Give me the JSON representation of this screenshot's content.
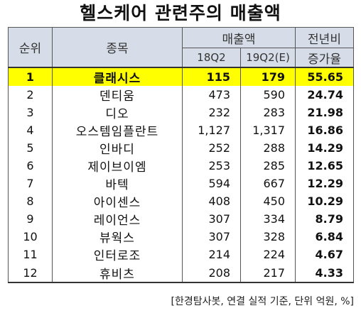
{
  "title": "헬스케어 관련주의 매출액",
  "header": {
    "rank": "순위",
    "name": "종목",
    "sales": "매출액",
    "col_18": "18Q2",
    "col_19": "19Q2(E)",
    "yoy_line1": "전년비",
    "yoy_line2": "증가율"
  },
  "rows": [
    {
      "rank": "1",
      "name": "클래시스",
      "q18": "115",
      "q19": "179",
      "yoy": "55.65"
    },
    {
      "rank": "2",
      "name": "덴티움",
      "q18": "473",
      "q19": "590",
      "yoy": "24.74"
    },
    {
      "rank": "3",
      "name": "디오",
      "q18": "232",
      "q19": "283",
      "yoy": "21.98"
    },
    {
      "rank": "4",
      "name": "오스템임플란트",
      "q18": "1,127",
      "q19": "1,317",
      "yoy": "16.86"
    },
    {
      "rank": "5",
      "name": "인바디",
      "q18": "252",
      "q19": "288",
      "yoy": "14.29"
    },
    {
      "rank": "6",
      "name": "제이브이엠",
      "q18": "253",
      "q19": "285",
      "yoy": "12.65"
    },
    {
      "rank": "7",
      "name": "바텍",
      "q18": "594",
      "q19": "667",
      "yoy": "12.29"
    },
    {
      "rank": "8",
      "name": "아이센스",
      "q18": "408",
      "q19": "450",
      "yoy": "10.29"
    },
    {
      "rank": "9",
      "name": "레이언스",
      "q18": "307",
      "q19": "334",
      "yoy": "8.79"
    },
    {
      "rank": "10",
      "name": "뷰웍스",
      "q18": "307",
      "q19": "328",
      "yoy": "6.84"
    },
    {
      "rank": "11",
      "name": "인터로조",
      "q18": "214",
      "q19": "224",
      "yoy": "4.67"
    },
    {
      "rank": "12",
      "name": "휴비츠",
      "q18": "208",
      "q19": "217",
      "yoy": "4.33"
    }
  ],
  "source": "[한경탐사봇, 연결 실적 기준, 단위 억원, %]",
  "colors": {
    "highlight": "#ffff00",
    "header_bg": "#d6dde8"
  }
}
